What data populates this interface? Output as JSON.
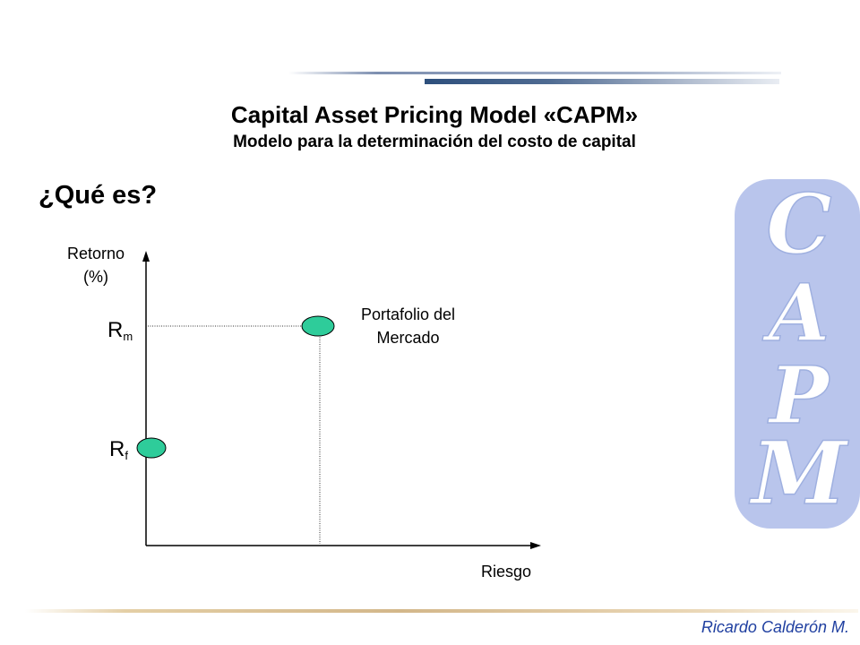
{
  "header": {
    "title": "Capital Asset Pricing Model «CAPM»",
    "subtitle": "Modelo para la determinación del costo de capital"
  },
  "section": {
    "question": "¿Qué es?"
  },
  "diagram": {
    "y_axis_label_line1": "Retorno",
    "y_axis_label_line2": "(%)",
    "x_axis_label": "Riesgo",
    "rm_symbol": "R",
    "rm_subscript": "m",
    "rf_symbol": "R",
    "rf_subscript": "f",
    "market_point_label_line1": "Portafolio del",
    "market_point_label_line2": "Mercado",
    "point_fill": "#2ecc9a"
  },
  "watermark": {
    "letters": [
      "C",
      "A",
      "P",
      "M"
    ],
    "color": "#b9c5ec"
  },
  "footer": {
    "author": "Ricardo Calderón M."
  },
  "colors": {
    "accent_blue": "#2d4f7c",
    "author_blue": "#1f3fa0"
  }
}
